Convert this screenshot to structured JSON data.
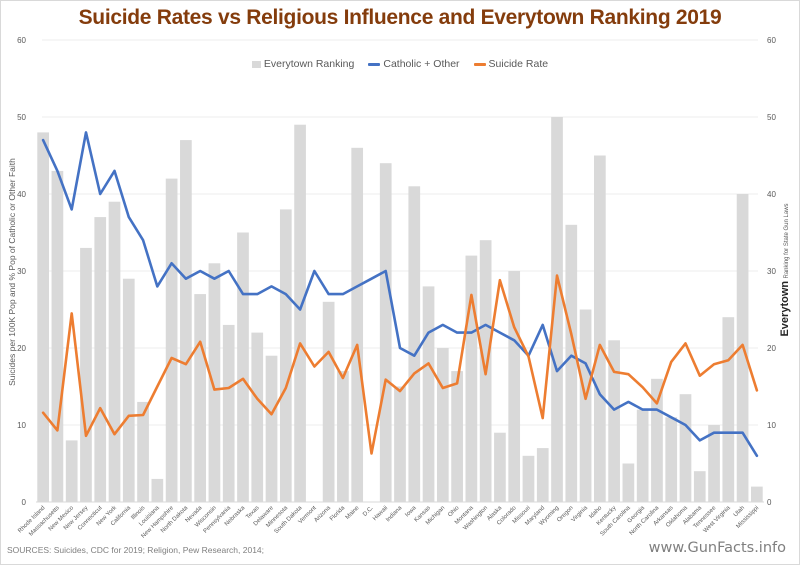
{
  "chart_data": {
    "type": "bar",
    "title": "Suicide Rates vs Religious Influence and Everytown Ranking 2019",
    "ylabel_left": "Suicides per 100K Pop and % Pop of Catholic or Other Faith",
    "ylabel_right_main": "Everytown",
    "ylabel_right_sub": "Ranking for State Gun Laws",
    "ylim_left": [
      0,
      60
    ],
    "ylim_right": [
      0,
      60
    ],
    "yticks": [
      0,
      10,
      20,
      30,
      40,
      50,
      60
    ],
    "grid": true,
    "legend_position": "top-center",
    "categories": [
      "Rhode Island",
      "Massachusetts",
      "New Mexico",
      "New Jersey",
      "Connecticut",
      "New York",
      "California",
      "Illinois",
      "Louisiana",
      "New Hampshire",
      "North Dakota",
      "Nevada",
      "Wisconsin",
      "Pennsylvania",
      "Nebraska",
      "Texas",
      "Delaware",
      "Minnesota",
      "South Dakota",
      "Vermont",
      "Arizona",
      "Florida",
      "Maine",
      "D.C.",
      "Hawaii",
      "Indiana",
      "Iowa",
      "Kansas",
      "Michigan",
      "Ohio",
      "Montana",
      "Washington",
      "Alaska",
      "Colorado",
      "Missouri",
      "Maryland",
      "Wyoming",
      "Oregon",
      "Virginia",
      "Idaho",
      "Kentucky",
      "South Carolina",
      "Georgia",
      "North Carolina",
      "Arkansas",
      "Oklahoma",
      "Alabama",
      "Tennessee",
      "West Virginia",
      "Utah",
      "Mississippi"
    ],
    "series": [
      {
        "name": "Everytown Ranking",
        "kind": "bar",
        "axis": "right",
        "color": "#d9d9d9",
        "values": [
          48,
          43,
          8,
          33,
          37,
          39,
          29,
          13,
          3,
          42,
          47,
          27,
          31,
          23,
          35,
          22,
          19,
          38,
          49,
          0,
          26,
          17,
          46,
          0,
          44,
          15,
          41,
          28,
          20,
          17,
          32,
          34,
          9,
          30,
          6,
          7,
          50,
          36,
          25,
          45,
          21,
          5,
          12,
          16,
          11,
          14,
          4,
          10,
          24,
          40,
          2
        ]
      },
      {
        "name": "Catholic + Other",
        "kind": "line",
        "axis": "left",
        "color": "#4472c4",
        "values": [
          47,
          43,
          38,
          48,
          40,
          43,
          37,
          34,
          28,
          31,
          29,
          30,
          29,
          30,
          27,
          27,
          28,
          27,
          25,
          30,
          27,
          27,
          28,
          29,
          30,
          20,
          19,
          22,
          23,
          22,
          22,
          23,
          22,
          21,
          19,
          23,
          17,
          19,
          18,
          14,
          12,
          13,
          12,
          12,
          11,
          10,
          8,
          9,
          9,
          9,
          6
        ]
      },
      {
        "name": "Suicide Rate",
        "kind": "line",
        "axis": "left",
        "color": "#ed7d31",
        "values": [
          11.6,
          9.3,
          24.5,
          8.6,
          12.2,
          8.8,
          11.2,
          11.3,
          15.0,
          18.7,
          17.9,
          20.8,
          14.6,
          14.8,
          16.0,
          13.4,
          11.4,
          14.8,
          20.6,
          17.6,
          19.5,
          16.1,
          20.4,
          6.3,
          15.9,
          14.4,
          16.7,
          18.0,
          14.8,
          15.4,
          26.9,
          16.6,
          28.8,
          22.7,
          18.9,
          10.9,
          29.4,
          21.8,
          13.4,
          20.4,
          16.9,
          16.6,
          14.9,
          12.8,
          18.2,
          20.6,
          16.4,
          17.9,
          18.4,
          20.4,
          14.5
        ]
      }
    ]
  },
  "footer": {
    "sources": "SOURCES: Suicides, CDC for 2019; Religion, Pew Research, 2014;",
    "watermark": "www.GunFacts.info"
  }
}
